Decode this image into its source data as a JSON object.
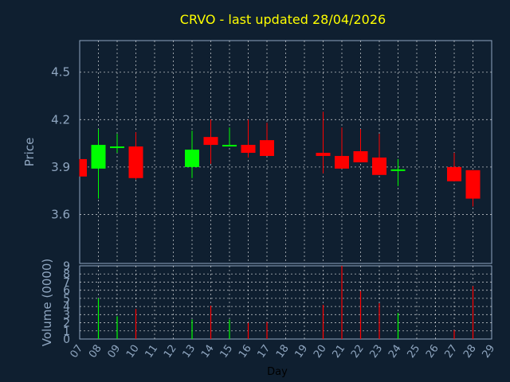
{
  "chart_data": {
    "type": "candlestick",
    "title": "CRVO - last updated 28/04/2026",
    "xlabel": "Day",
    "price_ylabel": "Price",
    "volume_ylabel": "Volume (0000)",
    "price_ylim": [
      3.29,
      4.7
    ],
    "price_ticks": [
      "3.6",
      "3.9",
      "4.2",
      "4.5"
    ],
    "volume_ylim": [
      0,
      9
    ],
    "volume_ticks": [
      "0",
      "1",
      "2",
      "3",
      "4",
      "5",
      "6",
      "7",
      "8",
      "9"
    ],
    "x_ticks": [
      "07",
      "08",
      "09",
      "10",
      "11",
      "12",
      "13",
      "14",
      "15",
      "16",
      "17",
      "18",
      "19",
      "20",
      "21",
      "22",
      "23",
      "24",
      "25",
      "26",
      "27",
      "28",
      "29"
    ],
    "grid": true,
    "colors": {
      "up": "#00ff00",
      "down": "#ff0000",
      "background": "#0f1f30",
      "grid": "#ffffff",
      "axis": "#8fa6c0",
      "title": "#ffff00"
    },
    "candles": [
      {
        "day": 7,
        "open": 3.95,
        "high": 3.95,
        "low": 3.84,
        "close": 3.84
      },
      {
        "day": 8,
        "open": 3.89,
        "high": 4.14,
        "low": 3.7,
        "close": 4.04
      },
      {
        "day": 9,
        "open": 4.02,
        "high": 4.11,
        "low": 3.99,
        "close": 4.03
      },
      {
        "day": 10,
        "open": 4.03,
        "high": 4.12,
        "low": 3.82,
        "close": 3.83
      },
      {
        "day": 13,
        "open": 3.9,
        "high": 4.13,
        "low": 3.83,
        "close": 4.01
      },
      {
        "day": 14,
        "open": 4.09,
        "high": 4.2,
        "low": 3.92,
        "close": 4.04
      },
      {
        "day": 15,
        "open": 4.03,
        "high": 4.15,
        "low": 4.03,
        "close": 4.04
      },
      {
        "day": 16,
        "open": 4.04,
        "high": 4.2,
        "low": 3.96,
        "close": 3.99
      },
      {
        "day": 17,
        "open": 4.07,
        "high": 4.18,
        "low": 3.97,
        "close": 3.97
      },
      {
        "day": 20,
        "open": 3.99,
        "high": 4.25,
        "low": 3.86,
        "close": 3.97
      },
      {
        "day": 21,
        "open": 3.97,
        "high": 4.15,
        "low": 3.89,
        "close": 3.89
      },
      {
        "day": 22,
        "open": 4.0,
        "high": 4.14,
        "low": 3.93,
        "close": 3.93
      },
      {
        "day": 23,
        "open": 3.96,
        "high": 4.11,
        "low": 3.85,
        "close": 3.85
      },
      {
        "day": 24,
        "open": 3.88,
        "high": 3.95,
        "low": 3.78,
        "close": 3.88
      },
      {
        "day": 27,
        "open": 3.9,
        "high": 3.99,
        "low": 3.81,
        "close": 3.81
      },
      {
        "day": 28,
        "open": 3.88,
        "high": 3.88,
        "low": 3.65,
        "close": 3.7
      }
    ],
    "volume": [
      {
        "day": 8,
        "value": 5.0,
        "up": true
      },
      {
        "day": 9,
        "value": 2.8,
        "up": true
      },
      {
        "day": 10,
        "value": 3.7,
        "up": false
      },
      {
        "day": 13,
        "value": 2.4,
        "up": true
      },
      {
        "day": 14,
        "value": 4.1,
        "up": false
      },
      {
        "day": 15,
        "value": 2.4,
        "up": true
      },
      {
        "day": 16,
        "value": 2.0,
        "up": false
      },
      {
        "day": 17,
        "value": 2.1,
        "up": false
      },
      {
        "day": 20,
        "value": 4.2,
        "up": false
      },
      {
        "day": 21,
        "value": 9.0,
        "up": false
      },
      {
        "day": 22,
        "value": 5.9,
        "up": false
      },
      {
        "day": 23,
        "value": 4.4,
        "up": false
      },
      {
        "day": 24,
        "value": 3.2,
        "up": true
      },
      {
        "day": 27,
        "value": 1.1,
        "up": false
      },
      {
        "day": 28,
        "value": 6.5,
        "up": false
      }
    ]
  }
}
